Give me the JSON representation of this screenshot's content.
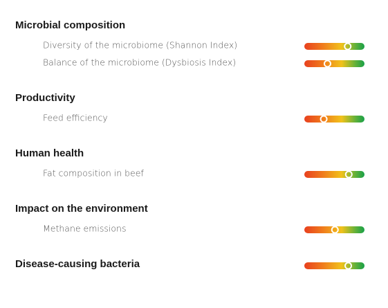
{
  "sections": [
    {
      "title": "Microbial composition",
      "items": [
        {
          "label": "Diversity of the microbiome (Shannon Index)",
          "value": 75
        },
        {
          "label": "Balance of the microbiome (Dysbiosis Index)",
          "value": 37
        }
      ]
    },
    {
      "title": "Productivity",
      "items": [
        {
          "label": "Feed efficiency",
          "value": 30
        }
      ]
    },
    {
      "title": "Human health",
      "items": [
        {
          "label": "Fat composition in beef",
          "value": 77
        }
      ]
    },
    {
      "title": "Impact on the environment",
      "items": [
        {
          "label": "Methane emissions",
          "value": 51
        }
      ]
    },
    {
      "title": "Disease-causing bacteria",
      "value": 76
    }
  ]
}
